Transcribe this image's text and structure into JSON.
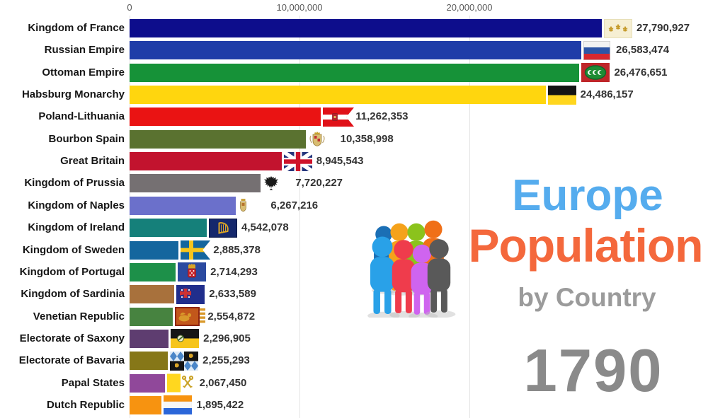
{
  "title_block": {
    "line1": "Europe",
    "line1_color": "#55acee",
    "line2": "Population",
    "line2_color": "#f4683c",
    "line3": "by Country",
    "line3_color": "#9b9b9b",
    "year": "1790",
    "year_color": "#8a8a8a",
    "people_icon": {
      "name": "people-group-icon",
      "colors": [
        "#1b6fb5",
        "#f5a21b",
        "#8bc31c",
        "#f07018",
        "#29a1e8",
        "#ef3c4c",
        "#cf64ef",
        "#595959"
      ]
    }
  },
  "chart_data": {
    "type": "bar",
    "orientation": "horizontal",
    "title": "Europe Population by Country",
    "year": "1790",
    "x_axis": {
      "grid": true,
      "max": 28000000,
      "ticks": [
        {
          "label": "0",
          "value": 0
        },
        {
          "label": "10,000,000",
          "value": 10000000
        },
        {
          "label": "20,000,000",
          "value": 20000000
        }
      ]
    },
    "rows": [
      {
        "label": "Kingdom of France",
        "value": 27790927,
        "value_label": "27,790,927",
        "color": "#0d0d8c",
        "flag": "france-royal"
      },
      {
        "label": "Russian Empire",
        "value": 26583474,
        "value_label": "26,583,474",
        "color": "#1f3da8",
        "flag": "russia-tricolor"
      },
      {
        "label": "Ottoman Empire",
        "value": 26476651,
        "value_label": "26,476,651",
        "color": "#169238",
        "flag": "ottoman-crescents"
      },
      {
        "label": "Habsburg Monarchy",
        "value": 24486157,
        "value_label": "24,486,157",
        "color": "#ffd60e",
        "flag": "habsburg-black-gold"
      },
      {
        "label": "Poland-Lithuania",
        "value": 11262353,
        "value_label": "11,262,353",
        "color": "#ea1313",
        "flag": "poland-lithuania-banner"
      },
      {
        "label": "Bourbon Spain",
        "value": 10358998,
        "value_label": "10,358,998",
        "color": "#5a7230",
        "flag": "spain-crest"
      },
      {
        "label": "Great Britain",
        "value": 8945543,
        "value_label": "8,945,543",
        "color": "#c2132e",
        "flag": "union-jack"
      },
      {
        "label": "Kingdom of Prussia",
        "value": 7720227,
        "value_label": "7,720,227",
        "color": "#757072",
        "flag": "prussia-eagle"
      },
      {
        "label": "Kingdom of Naples",
        "value": 6267216,
        "value_label": "6,267,216",
        "color": "#6b70cb",
        "flag": "naples-crest"
      },
      {
        "label": "Kingdom of Ireland",
        "value": 4542078,
        "value_label": "4,542,078",
        "color": "#15807a",
        "flag": "ireland-harp"
      },
      {
        "label": "Kingdom of Sweden",
        "value": 2885378,
        "value_label": "2,885,378",
        "color": "#14669e",
        "flag": "sweden-cross"
      },
      {
        "label": "Kingdom of Portugal",
        "value": 2714293,
        "value_label": "2,714,293",
        "color": "#1d9049",
        "flag": "portugal-crest"
      },
      {
        "label": "Kingdom of Sardinia",
        "value": 2633589,
        "value_label": "2,633,589",
        "color": "#a8713c",
        "flag": "sardinia-cross"
      },
      {
        "label": "Venetian Republic",
        "value": 2554872,
        "value_label": "2,554,872",
        "color": "#478340",
        "flag": "venice-lion"
      },
      {
        "label": "Electorate of Saxony",
        "value": 2296905,
        "value_label": "2,296,905",
        "color": "#5e3d70",
        "flag": "saxony-black-gold"
      },
      {
        "label": "Electorate of Bavaria",
        "value": 2255293,
        "value_label": "2,255,293",
        "color": "#867718",
        "flag": "bavaria-lozenges"
      },
      {
        "label": "Papal States",
        "value": 2067450,
        "value_label": "2,067,450",
        "color": "#90489a",
        "flag": "papal-keys"
      },
      {
        "label": "Dutch Republic",
        "value": 1895422,
        "value_label": "1,895,422",
        "color": "#f79310",
        "flag": "dutch-tricolor"
      }
    ]
  }
}
